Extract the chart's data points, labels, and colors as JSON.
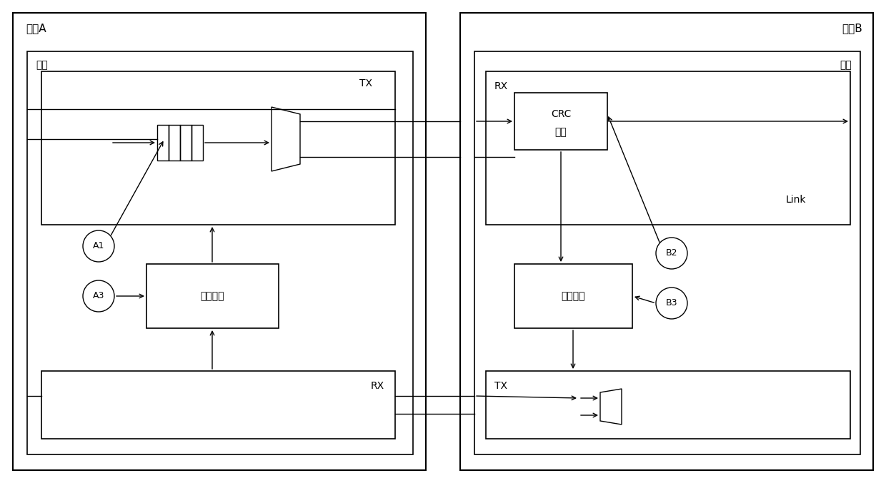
{
  "background_color": "#ffffff",
  "line_color": "#000000",
  "text_color": "#000000",
  "fig_width": 12.4,
  "fig_height": 6.77,
  "chip_a_label": "芯片A",
  "chip_b_label": "芯片B",
  "link_label_a": "链路",
  "link_label_b": "链路",
  "link_label_b2": "Link",
  "tx_label_a": "TX",
  "rx_label_a": "RX",
  "retrans_label_a": "重传管理",
  "rx_label_b": "RX",
  "crc_label_1": "CRC",
  "crc_label_2": "校验",
  "retrans_label_b": "重传管理",
  "tx_label_b": "TX",
  "node_a1": "A1",
  "node_a3": "A3",
  "node_b2": "B2",
  "node_b3": "B3"
}
